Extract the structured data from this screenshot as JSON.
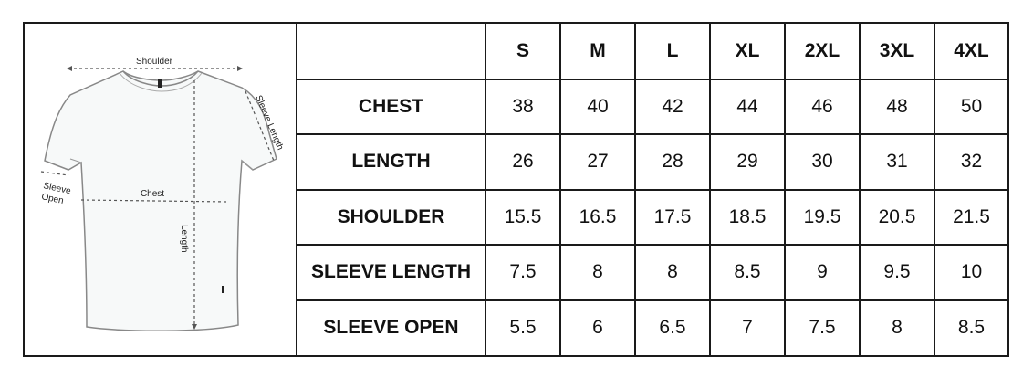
{
  "diagram": {
    "labels": {
      "shoulder": "Shoulder",
      "sleeve_length": "Sleeve Length",
      "sleeve_open_line1": "Sleeve",
      "sleeve_open_line2": "Open",
      "chest": "Chest",
      "length": "Length"
    }
  },
  "table": {
    "columns": [
      "S",
      "M",
      "L",
      "XL",
      "2XL",
      "3XL",
      "4XL"
    ],
    "rows": [
      {
        "label": "CHEST",
        "values": [
          "38",
          "40",
          "42",
          "44",
          "46",
          "48",
          "50"
        ]
      },
      {
        "label": "LENGTH",
        "values": [
          "26",
          "27",
          "28",
          "29",
          "30",
          "31",
          "32"
        ]
      },
      {
        "label": "SHOULDER",
        "values": [
          "15.5",
          "16.5",
          "17.5",
          "18.5",
          "19.5",
          "20.5",
          "21.5"
        ]
      },
      {
        "label": "SLEEVE LENGTH",
        "values": [
          "7.5",
          "8",
          "8",
          "8.5",
          "9",
          "9.5",
          "10"
        ]
      },
      {
        "label": "SLEEVE OPEN",
        "values": [
          "5.5",
          "6",
          "6.5",
          "7",
          "7.5",
          "8",
          "8.5"
        ]
      }
    ]
  }
}
